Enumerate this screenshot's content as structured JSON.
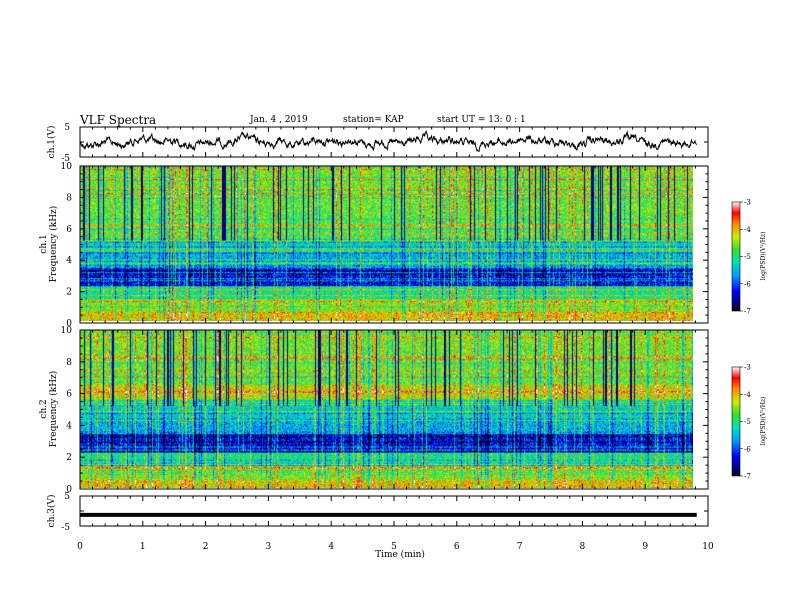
{
  "header": {
    "title": "VLF Spectra",
    "date": "Jan. 4 , 2019",
    "station": "station= KAP",
    "start": "start UT = 13: 0 : 1"
  },
  "chart_data": [
    {
      "type": "line",
      "panel": "ch1-waveform",
      "ylabel": "ch.1(V)",
      "ylim": [
        -5,
        5
      ],
      "yticks": [
        "5",
        "-5"
      ],
      "xlim": [
        0,
        10
      ],
      "series": [
        {
          "values": "noisy waveform around 0 V with amplitude about ±2.5 V from 0 to 9.8 min"
        }
      ]
    },
    {
      "type": "heatmap",
      "panel": "ch1-spectrogram",
      "ylabel": "ch.1\nFrequency (kHz)",
      "ylim": [
        0,
        10
      ],
      "yticks": [
        "0",
        "2",
        "4",
        "6",
        "8",
        "10"
      ],
      "xlim": [
        0,
        9.8
      ],
      "colorbar": {
        "label": "log(PSD)(V²/Hz)",
        "range": [
          -7,
          -3
        ],
        "ticks": [
          "-3",
          "-4",
          "-5",
          "-6",
          "-7"
        ]
      }
    },
    {
      "type": "heatmap",
      "panel": "ch2-spectrogram",
      "ylabel": "ch.2\nFrequency (kHz)",
      "ylim": [
        0,
        10
      ],
      "yticks": [
        "0",
        "2",
        "4",
        "6",
        "8",
        "10"
      ],
      "xlim": [
        0,
        9.8
      ],
      "colorbar": {
        "label": "log(PSD)(V²/Hz)",
        "range": [
          -7,
          -3
        ],
        "ticks": [
          "-3",
          "-4",
          "-5",
          "-6",
          "-7"
        ]
      }
    },
    {
      "type": "line",
      "panel": "ch3-waveform",
      "ylabel": "ch.3(V)",
      "ylim": [
        -5,
        5
      ],
      "yticks": [
        "5",
        "-5"
      ],
      "xlim": [
        0,
        10
      ],
      "series": [
        {
          "values": "flat trace at about -1.3 V from 0 to 9.8 min"
        }
      ]
    }
  ],
  "xaxis": {
    "label": "Time (min)",
    "ticks": [
      "0",
      "1",
      "2",
      "3",
      "4",
      "5",
      "6",
      "7",
      "8",
      "9",
      "10"
    ]
  }
}
